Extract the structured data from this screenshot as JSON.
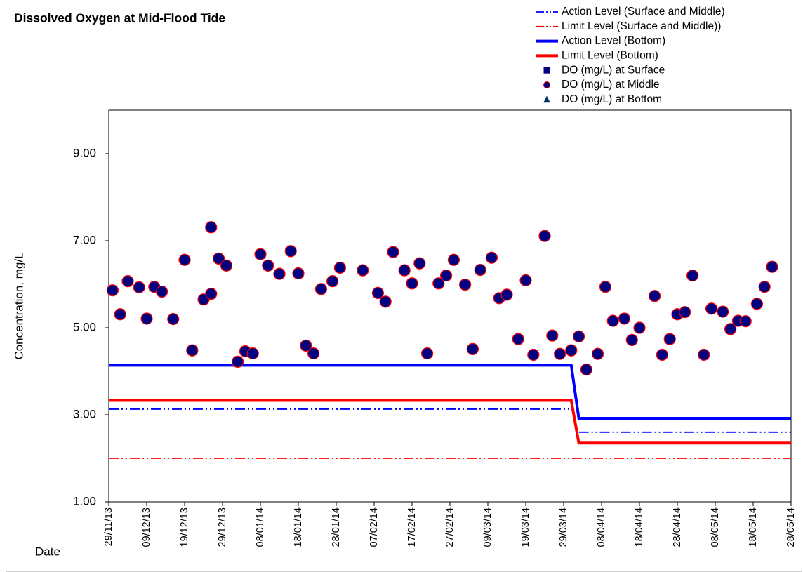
{
  "chart_data": {
    "type": "scatter",
    "title": "Dissolved Oxygen at Mid-Flood Tide",
    "x_label": "Date",
    "y_label": "Concentration, mg/L",
    "xlim": [
      "29/11/13",
      "28/05/14"
    ],
    "xticks": [
      "29/11/13",
      "09/12/13",
      "19/12/13",
      "29/12/13",
      "08/01/14",
      "18/01/14",
      "28/01/14",
      "07/02/14",
      "17/02/14",
      "27/02/14",
      "09/03/14",
      "19/03/14",
      "29/03/14",
      "08/04/14",
      "18/04/14",
      "28/04/14",
      "08/05/14",
      "18/05/14",
      "28/05/14"
    ],
    "ylim": [
      1,
      10
    ],
    "yticks": [
      {
        "value": 1,
        "label": "1.00"
      },
      {
        "value": 3,
        "label": "3.00"
      },
      {
        "value": 5,
        "label": "5.00"
      },
      {
        "value": 7,
        "label": "7.00"
      },
      {
        "value": 9,
        "label": "9.00"
      }
    ],
    "legend": "top-right",
    "series": [
      {
        "name": "Action Level (Surface and Middle)",
        "style": "dash-dot",
        "color": "#0000ff",
        "x": [
          "29/11/13",
          "31/03/14",
          "01/04/14",
          "02/04/14",
          "28/05/14"
        ],
        "values": [
          3.13,
          3.13,
          null,
          2.6,
          2.6
        ]
      },
      {
        "name": "Limit Level (Surface and Middle))",
        "style": "dash-dot",
        "color": "#ff0000",
        "x": [
          "29/11/13",
          "28/05/14"
        ],
        "values": [
          2.0,
          2.0
        ]
      },
      {
        "name": "Action Level (Bottom)",
        "style": "solid",
        "color": "#0000ff",
        "x": [
          "29/11/13",
          "31/03/14",
          "02/04/14",
          "28/05/14"
        ],
        "values": [
          4.14,
          4.14,
          2.92,
          2.92
        ]
      },
      {
        "name": "Limit Level (Bottom)",
        "style": "solid",
        "color": "#ff0000",
        "x": [
          "29/11/13",
          "31/03/14",
          "02/04/14",
          "28/05/14"
        ],
        "values": [
          3.33,
          3.33,
          2.35,
          2.35
        ]
      },
      {
        "name": "DO (mg/L) at Surface",
        "style": "marker",
        "marker": "square",
        "color": "#000080",
        "x": [],
        "values": []
      },
      {
        "name": "DO (mg/L) at Middle",
        "style": "marker",
        "marker": "circle",
        "color": "#000080",
        "edge": "#ff0000",
        "x": [
          "30/11/13",
          "02/12/13",
          "04/12/13",
          "07/12/13",
          "09/12/13",
          "11/12/13",
          "13/12/13",
          "16/12/13",
          "19/12/13",
          "21/12/13",
          "24/12/13",
          "26/12/13",
          "26/12/13",
          "28/12/13",
          "30/12/13",
          "02/01/14",
          "04/01/14",
          "06/01/14",
          "08/01/14",
          "10/01/14",
          "13/01/14",
          "16/01/14",
          "18/01/14",
          "20/01/14",
          "22/01/14",
          "24/01/14",
          "27/01/14",
          "29/01/14",
          "04/02/14",
          "08/02/14",
          "10/02/14",
          "12/02/14",
          "15/02/14",
          "17/02/14",
          "19/02/14",
          "21/02/14",
          "24/02/14",
          "26/02/14",
          "28/02/14",
          "03/03/14",
          "05/03/14",
          "07/03/14",
          "10/03/14",
          "12/03/14",
          "14/03/14",
          "17/03/14",
          "19/03/14",
          "21/03/14",
          "24/03/14",
          "26/03/14",
          "28/03/14",
          "31/03/14",
          "02/04/14",
          "04/04/14",
          "07/04/14",
          "09/04/14",
          "11/04/14",
          "14/04/14",
          "16/04/14",
          "18/04/14",
          "22/04/14",
          "24/04/14",
          "26/04/14",
          "28/04/14",
          "30/04/14",
          "02/05/14",
          "05/05/14",
          "07/05/14",
          "10/05/14",
          "12/05/14",
          "14/05/14",
          "16/05/14",
          "19/05/14",
          "21/05/14",
          "23/05/14"
        ],
        "values": [
          5.86,
          5.31,
          6.07,
          5.93,
          5.21,
          5.94,
          5.83,
          5.2,
          6.56,
          4.48,
          5.65,
          5.78,
          7.31,
          6.59,
          6.43,
          4.22,
          4.46,
          4.41,
          6.69,
          6.43,
          6.24,
          6.76,
          6.25,
          4.59,
          4.41,
          5.89,
          6.07,
          6.38,
          6.32,
          5.8,
          5.6,
          6.74,
          6.32,
          6.02,
          6.48,
          4.41,
          6.02,
          6.2,
          6.56,
          5.99,
          4.51,
          6.33,
          6.61,
          5.68,
          5.76,
          4.74,
          6.09,
          4.38,
          7.11,
          4.82,
          4.4,
          4.48,
          4.8,
          4.04,
          4.4,
          5.94,
          5.16,
          5.21,
          4.72,
          5.0,
          5.73,
          4.38,
          4.74,
          5.31,
          5.36,
          6.2,
          4.38,
          5.44,
          5.37,
          4.97,
          5.16,
          5.15,
          5.55,
          5.94,
          6.4
        ]
      },
      {
        "name": "DO (mg/L) at Bottom",
        "style": "marker",
        "marker": "triangle",
        "color": "#003366",
        "x": [],
        "values": []
      }
    ]
  }
}
